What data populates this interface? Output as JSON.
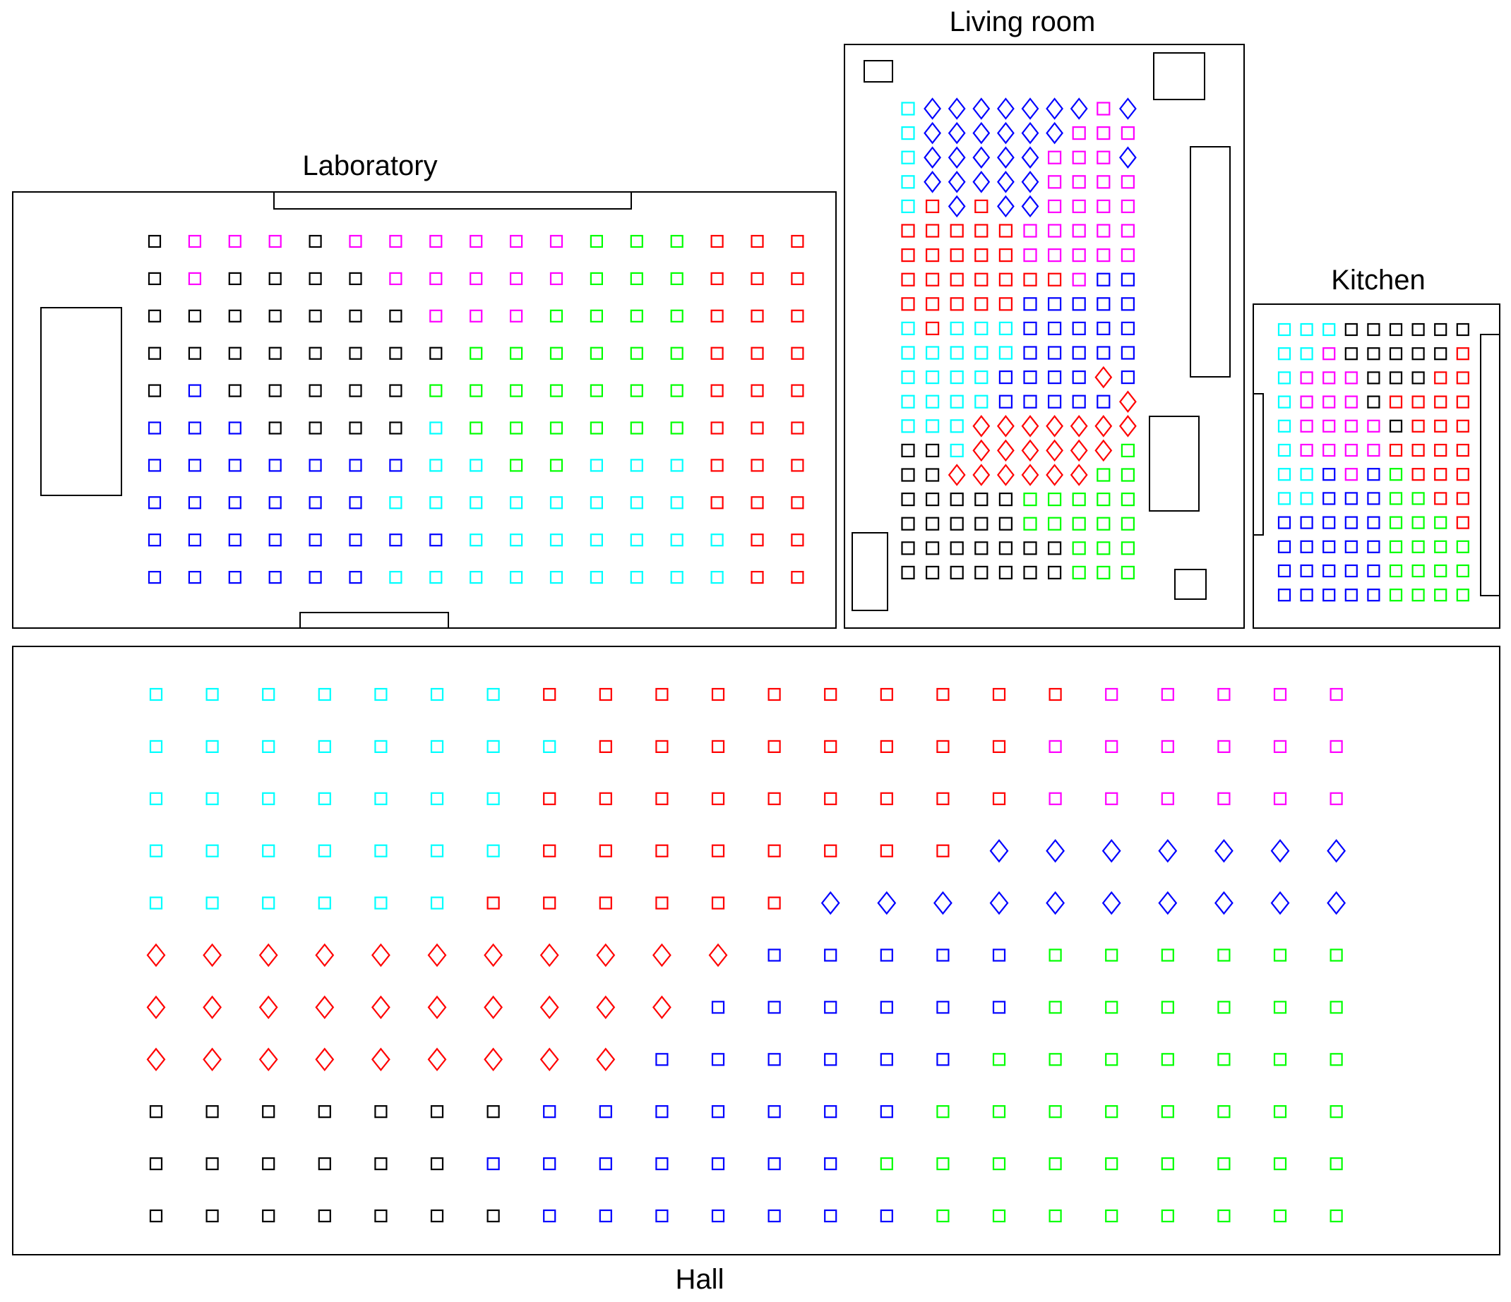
{
  "colors": {
    "k": "#000000",
    "m": "#ff00ff",
    "g": "#00ff00",
    "r": "#ff0000",
    "b": "#0000ff",
    "c": "#00ffff"
  },
  "legend": {
    "shape_codes": {
      "s": "square",
      "d": "diamond"
    },
    "color_codes": {
      "k": "black",
      "m": "magenta",
      "g": "green",
      "r": "red",
      "b": "blue",
      "c": "cyan"
    }
  },
  "rooms": [
    {
      "id": "laboratory",
      "title": "Laboratory",
      "rows": [
        "ks ms ms ms ks ms ms ms ms ms ms gs gs gs rs rs rs",
        "ks ms ks ks ks ks ms ms ms ms ms gs gs gs rs rs rs",
        "ks ks ks ks ks ks ks ms ms ms gs gs gs gs rs rs rs",
        "ks ks ks ks ks ks ks ks gs gs gs gs gs gs rs rs rs",
        "ks bs ks ks ks ks ks gs gs gs gs gs gs gs rs rs rs",
        "bs bs bs ks ks ks ks cs gs gs gs gs gs gs rs rs rs",
        "bs bs bs bs bs bs bs cs cs gs gs cs cs cs rs rs rs",
        "bs bs bs bs bs bs cs cs cs cs cs cs cs cs rs rs rs",
        "bs bs bs bs bs bs bs bs cs cs cs cs cs cs cs rs rs",
        "bs bs bs bs bs bs cs cs cs cs cs cs cs cs cs rs rs"
      ]
    },
    {
      "id": "living-room",
      "title": "Living room",
      "rows": [
        "cs bd bd bd bd bd bd bd ms bd",
        "cs bd bd bd bd bd bd ms ms ms",
        "cs bd bd bd bd bd ms ms ms bd",
        "cs bd bd bd bd bd ms ms ms ms",
        "cs rs bd rs bd bd ms ms ms ms",
        "rs rs rs rs rs ms ms ms ms ms",
        "rs rs rs rs rs ms ms ms ms ms",
        "rs rs rs rs rs rs rs ms bs bs",
        "rs rs rs rs rs bs bs bs bs bs",
        "cs rs cs cs cs bs bs bs bs bs",
        "cs cs cs cs cs bs bs bs bs bs",
        "cs cs cs cs bs bs bs bs rd bs",
        "cs cs cs cs bs bs bs bs bs rd",
        "cs cs cs rd rd rd rd rd rd rd",
        "ks ks cs rd rd rd rd rd rd gs",
        "ks ks rd rd rd rd rd rd gs gs",
        "ks ks ks ks ks gs gs gs gs gs",
        "ks ks ks ks ks gs gs gs gs gs",
        "ks ks ks ks ks ks ks gs gs gs",
        "ks ks ks ks ks ks ks gs gs gs"
      ]
    },
    {
      "id": "kitchen",
      "title": "Kitchen",
      "rows": [
        "cs cs cs ks ks ks ks ks ks",
        "cs cs ms ks ks ks ks ks rs",
        "cs ms ms ms ks ks ks rs rs",
        "cs ms ms ms ks rs rs rs rs",
        "cs ms ms ms ms ks rs rs rs",
        "cs ms ms ms ms rs rs rs rs",
        "cs cs bs ms bs gs rs rs rs",
        "cs cs bs bs bs gs gs rs rs",
        "bs bs bs bs bs gs gs gs rs",
        "bs bs bs bs bs gs gs gs gs",
        "bs bs bs bs bs gs gs gs gs",
        "bs bs bs bs bs gs gs gs gs"
      ]
    },
    {
      "id": "hall",
      "title": "Hall",
      "rows": [
        "cs cs cs cs cs cs cs rs rs rs rs rs rs rs rs rs rs ms ms ms ms ms",
        "cs cs cs cs cs cs cs cs rs rs rs rs rs rs rs rs ms ms ms ms ms ms",
        "cs cs cs cs cs cs cs rs rs rs rs rs rs rs rs rs ms ms ms ms ms ms",
        "cs cs cs cs cs cs cs rs rs rs rs rs rs rs rs bd bd bd bd bd bd bd",
        "cs cs cs cs cs cs rs rs rs rs rs rs bd bd bd bd bd bd bd bd bd bd",
        "rd rd rd rd rd rd rd rd rd rd rd bs bs bs bs bs gs gs gs gs gs gs",
        "rd rd rd rd rd rd rd rd rd rd bs bs bs bs bs bs gs gs gs gs gs gs",
        "rd rd rd rd rd rd rd rd rd bs bs bs bs bs bs gs gs gs gs gs gs gs",
        "ks ks ks ks ks ks ks bs bs bs bs bs bs bs gs gs gs gs gs gs gs gs",
        "ks ks ks ks ks ks bs bs bs bs bs bs bs gs gs gs gs gs gs gs gs gs",
        "ks ks ks ks ks ks ks bs bs bs bs bs bs bs gs gs gs gs gs gs gs gs"
      ]
    }
  ]
}
